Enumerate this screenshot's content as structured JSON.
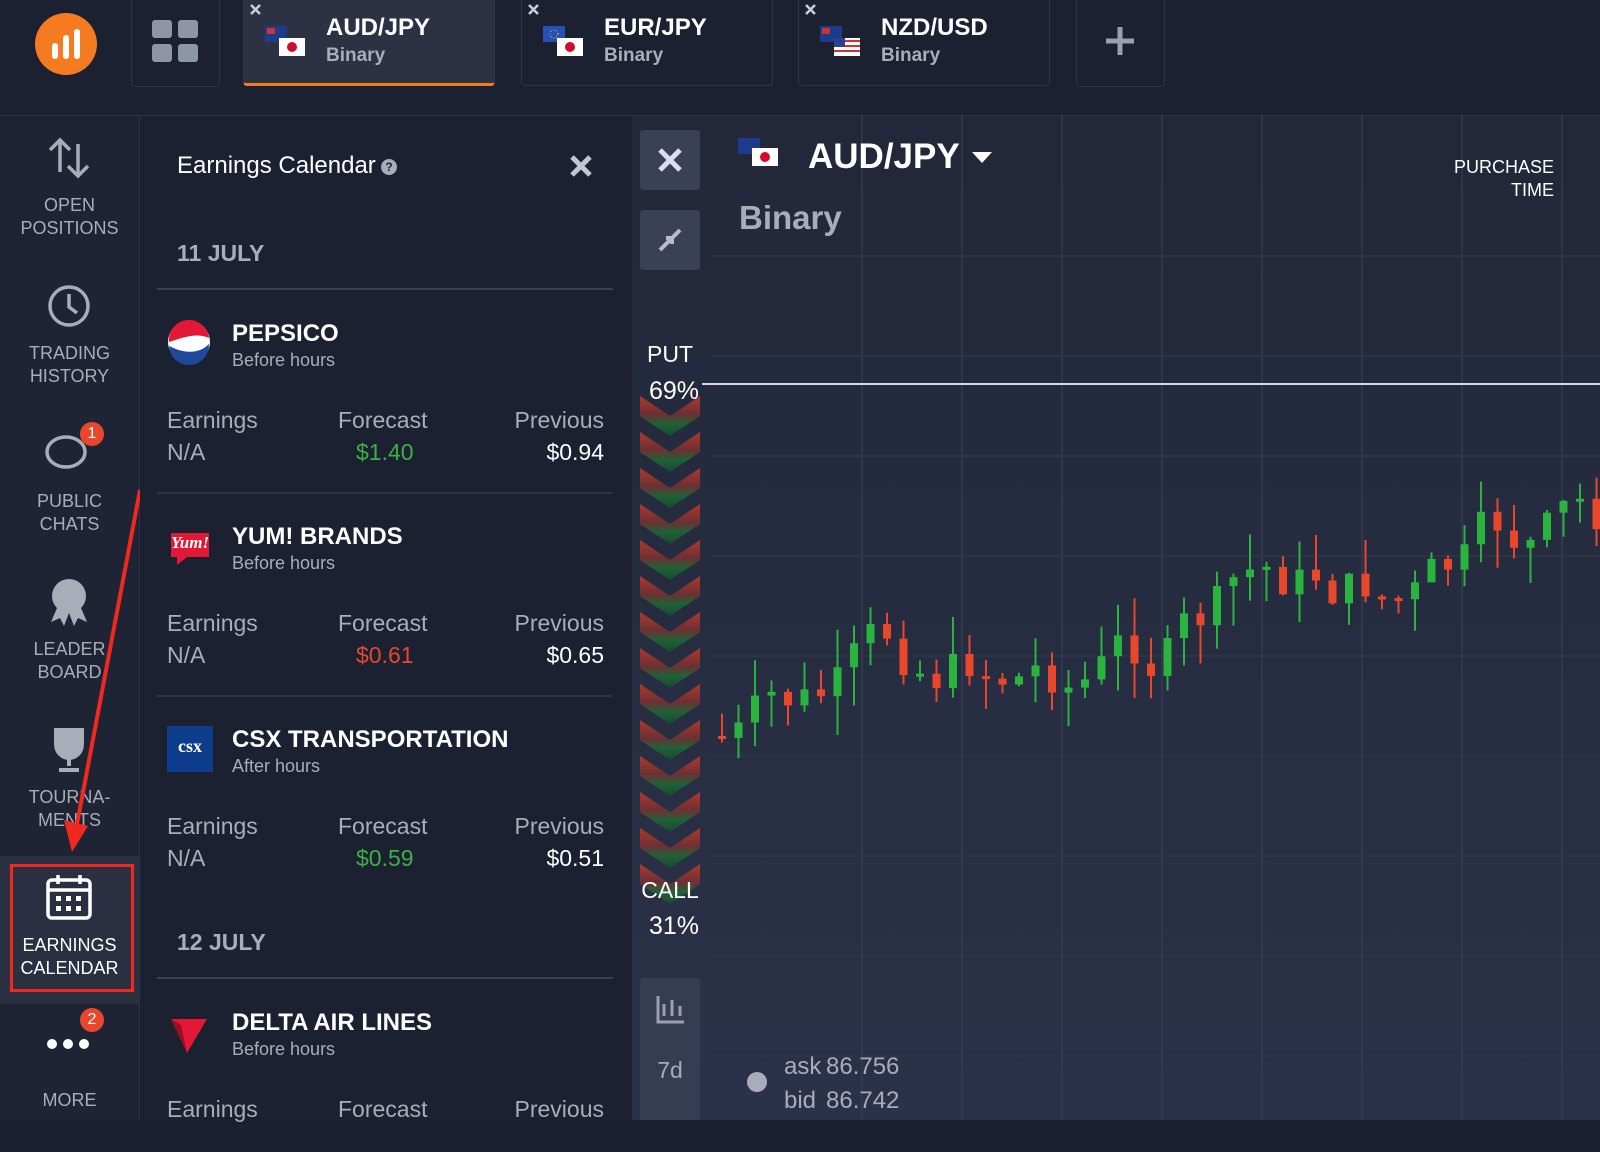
{
  "tabs": [
    {
      "pair": "AUD/JPY",
      "kind": "Binary"
    },
    {
      "pair": "EUR/JPY",
      "kind": "Binary"
    },
    {
      "pair": "NZD/USD",
      "kind": "Binary"
    }
  ],
  "sidebar": [
    {
      "lines": [
        "OPEN",
        "POSITIONS"
      ]
    },
    {
      "lines": [
        "TRADING",
        "HISTORY"
      ]
    },
    {
      "lines": [
        "PUBLIC",
        "CHATS"
      ],
      "badge": "1"
    },
    {
      "lines": [
        "LEADER",
        "BOARD"
      ]
    },
    {
      "lines": [
        "TOURNA-",
        "MENTS"
      ]
    },
    {
      "lines": [
        "EARNINGS",
        "CALENDAR"
      ]
    },
    {
      "lines": [
        "MORE"
      ],
      "badge": "2"
    }
  ],
  "panel": {
    "title": "Earnings Calendar",
    "groups": [
      {
        "date": "11 JULY",
        "items": [
          {
            "company": "PEPSICO",
            "timing": "Before hours",
            "earnings_label": "Earnings",
            "earnings": "N/A",
            "forecast_label": "Forecast",
            "forecast": "$1.40",
            "forecast_color": "#3cb043",
            "previous_label": "Previous",
            "previous": "$0.94"
          },
          {
            "company": "YUM! BRANDS",
            "logo_text": "Yum!",
            "timing": "Before hours",
            "earnings_label": "Earnings",
            "earnings": "N/A",
            "forecast_label": "Forecast",
            "forecast": "$0.61",
            "forecast_color": "#e8472b",
            "previous_label": "Previous",
            "previous": "$0.65"
          },
          {
            "company": "CSX TRANSPORTATION",
            "logo_text": "csx",
            "timing": "After hours",
            "earnings_label": "Earnings",
            "earnings": "N/A",
            "forecast_label": "Forecast",
            "forecast": "$0.59",
            "forecast_color": "#3cb043",
            "previous_label": "Previous",
            "previous": "$0.51"
          }
        ]
      },
      {
        "date": "12 JULY",
        "items": [
          {
            "company": "DELTA AIR LINES",
            "timing": "Before hours",
            "earnings_label": "Earnings",
            "forecast_label": "Forecast",
            "previous_label": "Previous"
          }
        ]
      }
    ]
  },
  "chart": {
    "pair": "AUD/JPY",
    "kind": "Binary",
    "purchase_time": [
      "PURCHASE",
      "TIME"
    ],
    "put_label": "PUT",
    "put_pct": "69%",
    "call_label": "CALL",
    "call_pct": "31%",
    "period": "7d",
    "ask_label": "ask",
    "ask": "86.756",
    "bid_label": "bid",
    "bid": "86.742"
  }
}
